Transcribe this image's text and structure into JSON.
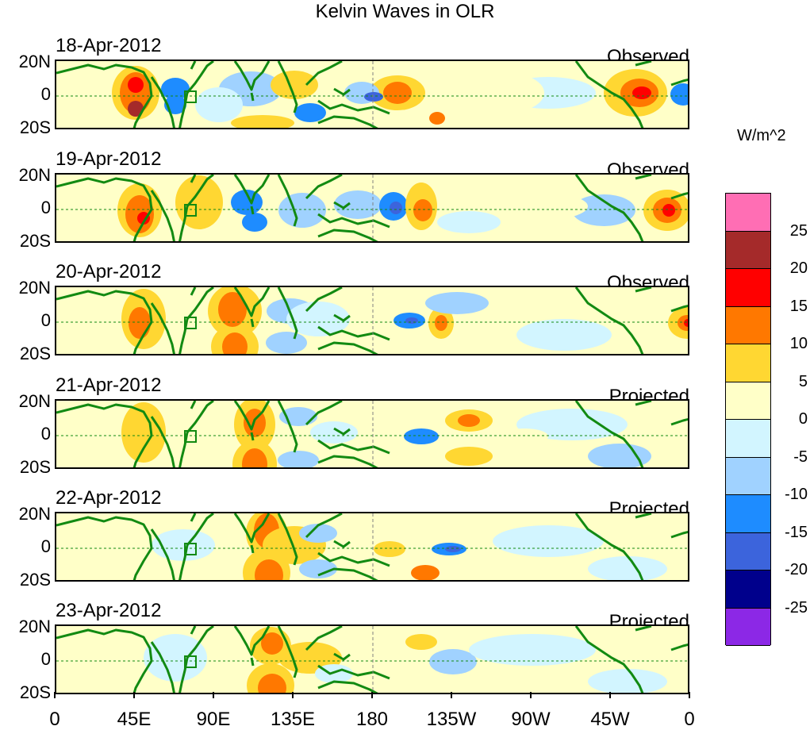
{
  "title": "Kelvin Waves in OLR",
  "units_label": "W/m^2",
  "y_axis_labels": {
    "north": "20N",
    "equator": "0",
    "south": "20S"
  },
  "x_axis_labels": [
    "0",
    "45E",
    "90E",
    "135E",
    "180",
    "135W",
    "90W",
    "45W",
    "0"
  ],
  "panels": [
    {
      "date": "18-Apr-2012",
      "kind": "Observed"
    },
    {
      "date": "19-Apr-2012",
      "kind": "Observed"
    },
    {
      "date": "20-Apr-2012",
      "kind": "Observed"
    },
    {
      "date": "21-Apr-2012",
      "kind": "Projected"
    },
    {
      "date": "22-Apr-2012",
      "kind": "Projected"
    },
    {
      "date": "23-Apr-2012",
      "kind": "Projected"
    }
  ],
  "colorbar": {
    "labels": [
      "25",
      "20",
      "15",
      "10",
      "5",
      "0",
      "-5",
      "-10",
      "-15",
      "-20",
      "-25"
    ],
    "colors": [
      "#ff6eb4",
      "#a52a2a",
      "#ff0000",
      "#ff7800",
      "#ffd732",
      "#ffffc8",
      "#d2f5ff",
      "#a0d2ff",
      "#1e8cff",
      "#3c64dc",
      "#00008c",
      "#8c28e6"
    ]
  },
  "colors": {
    "coast": "#128a12",
    "equator_line": "#128a12",
    "dateline": "#808080"
  }
}
